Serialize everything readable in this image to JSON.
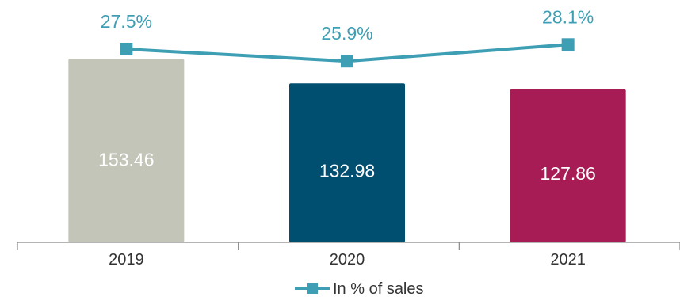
{
  "chart_data": {
    "type": "bar",
    "categories": [
      "2019",
      "2020",
      "2021"
    ],
    "values": [
      153.46,
      132.98,
      127.86
    ],
    "value_labels": [
      "153.46",
      "132.98",
      "127.86"
    ],
    "bar_colors": [
      "#c2c5b8",
      "#004e70",
      "#a81c55"
    ],
    "line_series": {
      "name": "In % of sales",
      "values": [
        27.5,
        25.9,
        28.1
      ],
      "labels": [
        "27.5%",
        "25.9%",
        "28.1%"
      ],
      "color": "#3e9fb4",
      "marker": "square"
    },
    "legend": {
      "position": "bottom-center",
      "entries": [
        "In % of sales"
      ]
    },
    "title": "",
    "xlabel": "",
    "ylabel": "",
    "ylim": [
      0,
      160
    ],
    "grid": false
  }
}
